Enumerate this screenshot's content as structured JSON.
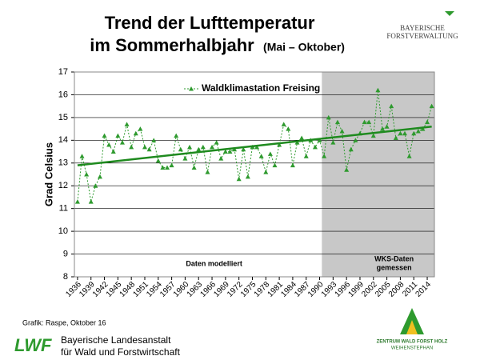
{
  "chart_data": {
    "type": "line",
    "title": "Trend der Lufttemperatur",
    "title_line2": "im Sommerhalbjahr",
    "title_suffix": "(Mai – Oktober)",
    "y_label": "Grad Celsius",
    "x": [
      1936,
      1937,
      1938,
      1939,
      1940,
      1941,
      1942,
      1943,
      1944,
      1945,
      1946,
      1947,
      1948,
      1949,
      1950,
      1951,
      1952,
      1953,
      1954,
      1955,
      1956,
      1957,
      1958,
      1959,
      1960,
      1961,
      1962,
      1963,
      1964,
      1965,
      1966,
      1967,
      1968,
      1969,
      1970,
      1971,
      1972,
      1973,
      1974,
      1975,
      1976,
      1977,
      1978,
      1979,
      1980,
      1981,
      1982,
      1983,
      1984,
      1985,
      1986,
      1987,
      1988,
      1989,
      1990,
      1991,
      1992,
      1993,
      1994,
      1995,
      1996,
      1997,
      1998,
      1999,
      2000,
      2001,
      2002,
      2003,
      2004,
      2005,
      2006,
      2007,
      2008,
      2009,
      2010,
      2011,
      2012,
      2013,
      2014,
      2015
    ],
    "series": [
      {
        "name": "Waldklimastation Freising",
        "color": "#2e9a2e",
        "values": [
          11.3,
          13.3,
          12.5,
          11.3,
          12.0,
          12.4,
          14.2,
          13.8,
          13.5,
          14.2,
          13.9,
          14.7,
          13.7,
          14.3,
          14.5,
          13.7,
          13.6,
          14.0,
          13.1,
          12.8,
          12.8,
          12.9,
          14.2,
          13.6,
          13.2,
          13.7,
          12.8,
          13.6,
          13.7,
          12.6,
          13.7,
          13.9,
          13.2,
          13.5,
          13.5,
          13.6,
          12.3,
          13.6,
          12.4,
          13.7,
          13.7,
          13.3,
          12.6,
          13.4,
          12.9,
          13.8,
          14.7,
          14.5,
          12.9,
          13.9,
          14.1,
          13.3,
          14.0,
          13.7,
          14.0,
          13.3,
          15.0,
          13.9,
          14.8,
          14.4,
          12.7,
          13.6,
          14.0,
          14.3,
          14.8,
          14.8,
          14.2,
          16.2,
          14.5,
          14.6,
          15.5,
          14.1,
          14.3,
          14.3,
          13.3,
          14.3,
          14.4,
          14.5,
          14.8,
          15.5
        ]
      }
    ],
    "trend": {
      "color": "#1e8a1e",
      "x": [
        1936,
        2015
      ],
      "values": [
        12.9,
        14.6
      ]
    },
    "shade": {
      "color": "#c8c8c8",
      "x": [
        1990.5,
        2015.6
      ]
    },
    "annotations": [
      "Daten modelliert",
      "WKS-Daten",
      "gemessen"
    ],
    "xlim": [
      1935.3,
      2015.6
    ],
    "ylim": [
      8,
      17
    ],
    "xticks": [
      1936,
      1939,
      1942,
      1945,
      1948,
      1951,
      1954,
      1957,
      1960,
      1963,
      1966,
      1969,
      1972,
      1975,
      1978,
      1981,
      1984,
      1987,
      1990,
      1993,
      1996,
      1999,
      2002,
      2005,
      2008,
      2011,
      2014
    ],
    "yticks": [
      8,
      9,
      10,
      11,
      12,
      13,
      14,
      15,
      16,
      17
    ],
    "grid": true
  },
  "footer": {
    "credit": "Grafik: Raspe, Oktober 16",
    "logo_left": "LWF",
    "org_line1": "Bayerische Landesanstalt",
    "org_line2": "für Wald und Forstwirtschaft",
    "logo_right_line1": "ZENTRUM WALD FORST HOLZ",
    "logo_right_line2": "WEIHENSTEPHAN"
  },
  "header_logo": {
    "line1": "BAYERISCHE",
    "line2": "FORSTVERWALTUNG"
  }
}
